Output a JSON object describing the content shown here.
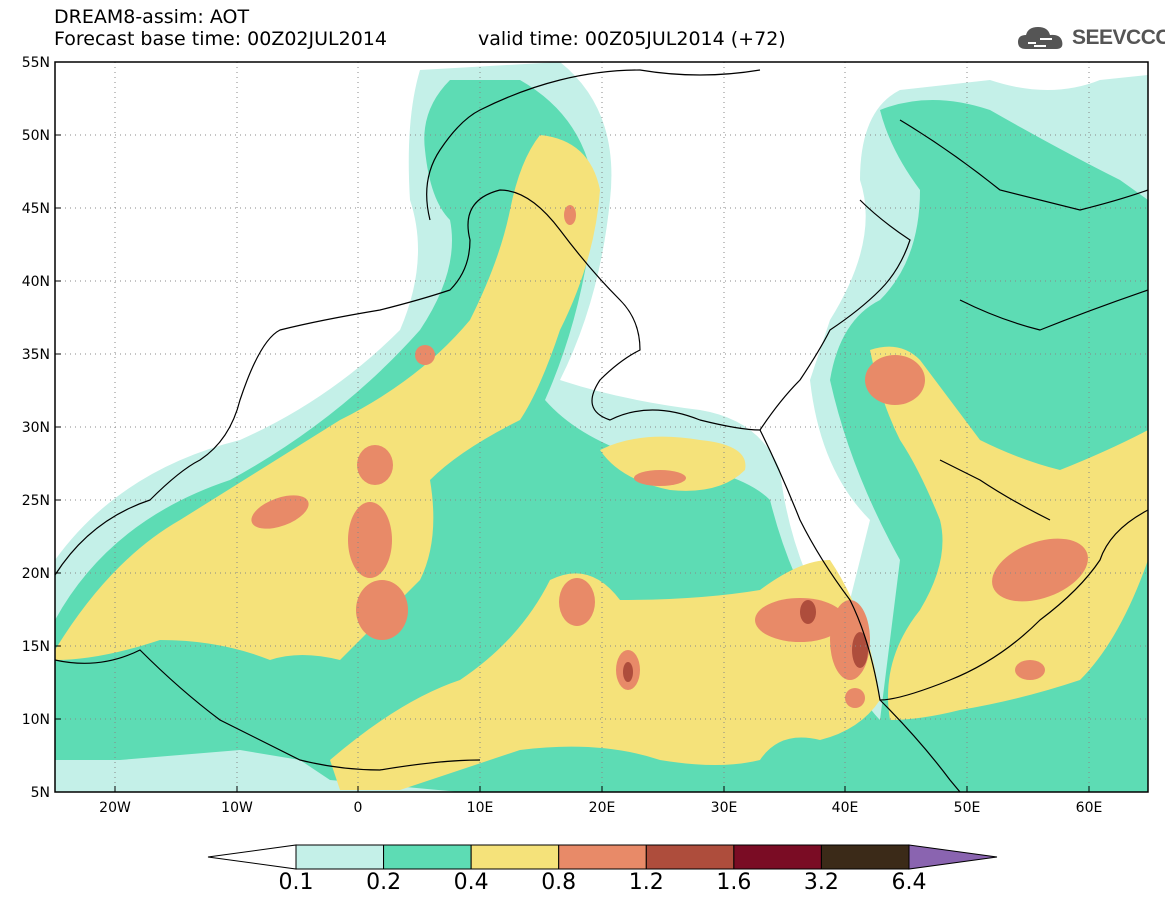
{
  "title": {
    "line1": "DREAM8-assim: AOT",
    "line2": "Forecast base time: 00Z02JUL2014",
    "valid": "valid time: 00Z05JUL2014 (+72)"
  },
  "logo": {
    "text": "SEEVCCC",
    "icon": "cloud-icon",
    "color": "#555555"
  },
  "map": {
    "lon_range": [
      -25,
      65
    ],
    "lat_range": [
      5,
      55
    ],
    "lat_ticks": [
      "55N",
      "50N",
      "45N",
      "40N",
      "35N",
      "30N",
      "25N",
      "20N",
      "15N",
      "10N",
      "5N"
    ],
    "lon_ticks": [
      "20W",
      "10W",
      "0",
      "10E",
      "20E",
      "30E",
      "40E",
      "50E",
      "60E"
    ],
    "grid": "dotted"
  },
  "colorbar": {
    "labels": [
      "0.1",
      "0.2",
      "0.4",
      "0.8",
      "1.2",
      "1.6",
      "3.2",
      "6.4"
    ],
    "colors": [
      "#c4f0e8",
      "#5ddcb4",
      "#f5e27a",
      "#e88a68",
      "#ae4d3c",
      "#7a0c24",
      "#3b2a18"
    ],
    "under_color": "#ffffff",
    "over_color": "#8a64b0"
  },
  "field_colors": {
    "c01": "#c4f0e8",
    "c02": "#5ddcb4",
    "c04": "#f5e27a",
    "c08": "#e88a68",
    "c12": "#ae4d3c",
    "c16": "#7a0c24"
  }
}
